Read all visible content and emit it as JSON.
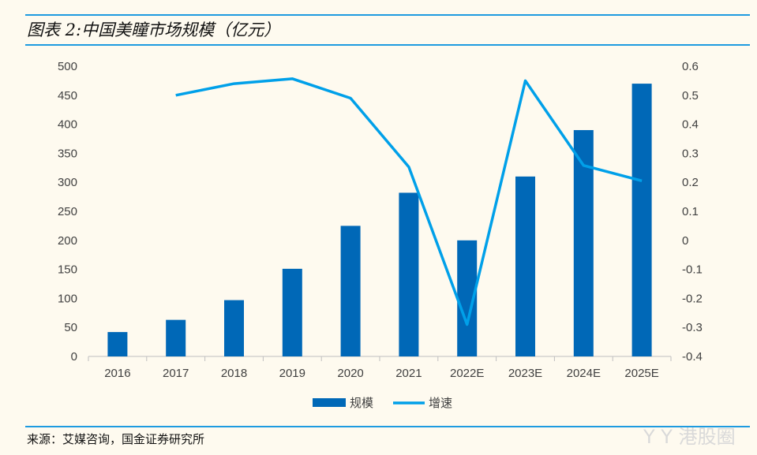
{
  "title": "图表 2:中国美瞳市场规模（亿元）",
  "source": "来源：艾媒咨询，国金证券研究所",
  "watermark": "港股圈",
  "chart_data": {
    "type": "bar+line",
    "categories": [
      "2016",
      "2017",
      "2018",
      "2019",
      "2020",
      "2021",
      "2022E",
      "2023E",
      "2024E",
      "2025E"
    ],
    "series": [
      {
        "name": "规模",
        "type": "bar",
        "axis": "left",
        "color": "#0068b7",
        "values": [
          42,
          63,
          97,
          151,
          225,
          282,
          200,
          310,
          390,
          470
        ]
      },
      {
        "name": "增速",
        "type": "line",
        "axis": "right",
        "color": "#00a0e9",
        "values": [
          null,
          0.5,
          0.54,
          0.557,
          0.49,
          0.253,
          -0.29,
          0.55,
          0.258,
          0.205
        ]
      }
    ],
    "y_left": {
      "range": [
        0,
        500
      ],
      "ticks": [
        "0",
        "50",
        "100",
        "150",
        "200",
        "250",
        "300",
        "350",
        "400",
        "450",
        "500"
      ]
    },
    "y_right": {
      "range": [
        -0.4,
        0.6
      ],
      "ticks": [
        "-0.4",
        "-0.3",
        "-0.2",
        "-0.1",
        "0",
        "0.1",
        "0.2",
        "0.3",
        "0.4",
        "0.5",
        "0.6"
      ]
    },
    "legend": "bottom",
    "grid": false
  }
}
